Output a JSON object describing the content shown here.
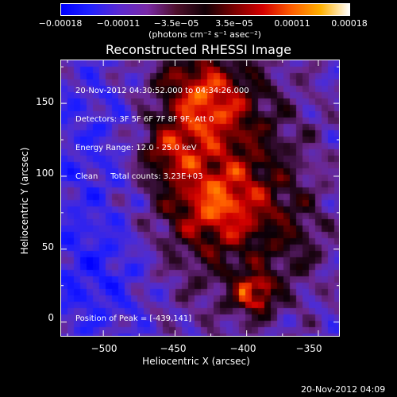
{
  "colorbar": {
    "tick_labels": [
      "−0.00018",
      "−0.00011",
      "−3.5e−05",
      "3.5e−05",
      "0.00011",
      "0.00018"
    ],
    "tick_values": [
      -0.00018,
      -0.00011,
      -3.5e-05,
      3.5e-05,
      0.00011,
      0.00018
    ],
    "units": "(photons cm⁻² s⁻¹ asec⁻²)",
    "range": [
      -0.00018,
      0.00018
    ]
  },
  "header": {
    "title": "Reconstructed RHESSI Image"
  },
  "overlay": {
    "line1": "20-Nov-2012 04:30:52.000 to 04:34:26.000",
    "line2": "Detectors: 3F 5F 6F 7F 8F 9F, Att 0",
    "line3": "Energy Range: 12.0 - 25.0 keV",
    "line4": "Clean     Total counts: 3.23E+03",
    "peak": "Position of Peak = [-439,141]"
  },
  "axes": {
    "xlabel": "Heliocentric X (arcsec)",
    "ylabel": "Heliocentric Y (arcsec)",
    "x_tick_labels": [
      "−500",
      "−450",
      "−400",
      "−350"
    ],
    "y_tick_labels": [
      "0",
      "50",
      "100",
      "150"
    ]
  },
  "footer": {
    "date": "20-Nov-2012 04:09"
  },
  "chart_data": {
    "type": "heatmap",
    "title": "Reconstructed RHESSI Image",
    "xlabel": "Heliocentric X (arcsec)",
    "ylabel": "Heliocentric Y (arcsec)",
    "xlim": [
      -530,
      -335
    ],
    "ylim": [
      -10,
      180
    ],
    "x_ticks": [
      -500,
      -450,
      -400,
      -350
    ],
    "y_ticks": [
      0,
      50,
      100,
      150
    ],
    "colorbar_ticks": [
      -0.00018,
      -0.00011,
      -3.5e-05,
      3.5e-05,
      0.00011,
      0.00018
    ],
    "colorbar_range": [
      -0.00018,
      0.00018
    ],
    "peak_position": [
      -439,
      141
    ],
    "features": [
      {
        "x": -430,
        "y": 150,
        "level": "high"
      },
      {
        "x": -455,
        "y": 118,
        "level": "high"
      },
      {
        "x": -420,
        "y": 80,
        "level": "high"
      },
      {
        "x": -395,
        "y": 20,
        "level": "high"
      },
      {
        "x": -370,
        "y": 55,
        "level": "medium"
      },
      {
        "x": -500,
        "y": 120,
        "level": "low"
      },
      {
        "x": -510,
        "y": 35,
        "level": "low"
      }
    ],
    "grid": false
  },
  "colors": {
    "background": "#000000",
    "foreground": "#ffffff",
    "cmap_low": "#0000ff",
    "cmap_mid": "#000000",
    "cmap_high": "#ffffff"
  }
}
